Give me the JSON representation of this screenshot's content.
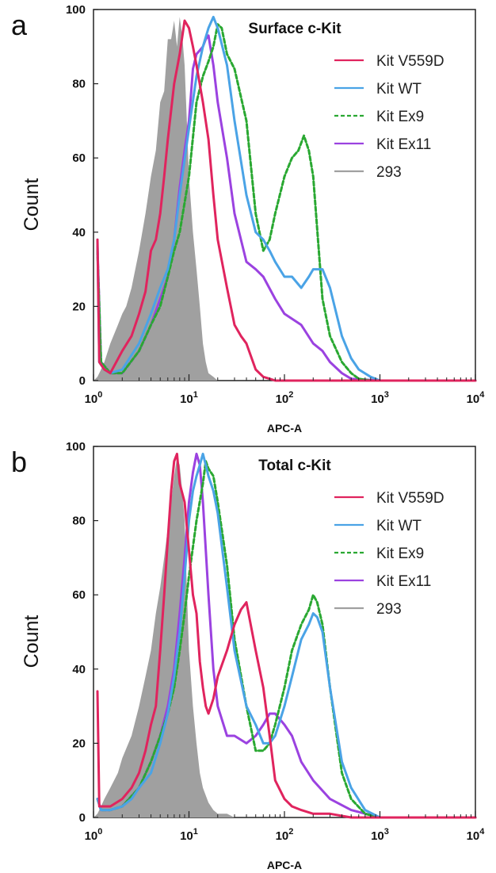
{
  "chart_data": [
    {
      "type": "line",
      "panel_label": "a",
      "title": "Surface c-Kit",
      "xlabel": "APC-A",
      "ylabel": "Count",
      "xscale": "log",
      "xlim": [
        1,
        10000
      ],
      "ylim": [
        0,
        100
      ],
      "yticks": [
        0,
        20,
        40,
        60,
        80,
        100
      ],
      "xticks": [
        {
          "value": 1,
          "base": "10",
          "exp": "0"
        },
        {
          "value": 10,
          "base": "10",
          "exp": "1"
        },
        {
          "value": 100,
          "base": "10",
          "exp": "2"
        },
        {
          "value": 1000,
          "base": "10",
          "exp": "3"
        },
        {
          "value": 10000,
          "base": "10",
          "exp": "4"
        }
      ],
      "legend_position": "top-right",
      "series": [
        {
          "name": "Kit V559D",
          "color": "#e0245e",
          "style": "solid",
          "x": [
            1.1,
            1.15,
            1.3,
            1.5,
            2,
            2.5,
            3,
            3.5,
            4,
            4.5,
            5,
            5.5,
            6,
            7,
            8,
            9,
            10,
            11,
            12,
            14,
            16,
            18,
            20,
            25,
            30,
            35,
            40,
            50,
            60,
            70,
            80,
            100,
            150,
            200,
            500,
            1000,
            10000
          ],
          "y": [
            38,
            5,
            3,
            2,
            8,
            12,
            18,
            24,
            35,
            38,
            45,
            55,
            65,
            80,
            88,
            97,
            95,
            90,
            85,
            75,
            65,
            50,
            38,
            25,
            15,
            12,
            10,
            3,
            1,
            0.5,
            0,
            0,
            0,
            0,
            0,
            0,
            0
          ]
        },
        {
          "name": "Kit WT",
          "color": "#4aa3e6",
          "style": "solid",
          "x": [
            1.1,
            1.15,
            1.3,
            1.5,
            2,
            3,
            4,
            5,
            6,
            7,
            8,
            10,
            12,
            14,
            16,
            18,
            20,
            25,
            30,
            40,
            50,
            60,
            70,
            80,
            100,
            120,
            150,
            180,
            200,
            250,
            300,
            400,
            500,
            600,
            800,
            1000,
            10000
          ],
          "y": [
            38,
            5,
            3,
            2,
            3,
            10,
            18,
            25,
            30,
            38,
            50,
            68,
            82,
            90,
            95,
            98,
            95,
            85,
            70,
            50,
            40,
            38,
            35,
            32,
            28,
            28,
            25,
            28,
            30,
            30,
            25,
            12,
            6,
            3,
            1,
            0,
            0
          ]
        },
        {
          "name": "Kit Ex9",
          "color": "#2aa832",
          "style": "dashed",
          "x": [
            1.1,
            1.2,
            1.5,
            2,
            3,
            4,
            5,
            6,
            7,
            8,
            10,
            12,
            14,
            16,
            18,
            20,
            22,
            25,
            30,
            40,
            50,
            60,
            70,
            80,
            100,
            120,
            140,
            160,
            180,
            200,
            250,
            300,
            400,
            500,
            600,
            800,
            1000,
            10000
          ],
          "y": [
            35,
            5,
            2,
            2,
            8,
            15,
            20,
            28,
            35,
            40,
            55,
            75,
            82,
            86,
            90,
            96,
            95,
            88,
            84,
            70,
            45,
            35,
            38,
            45,
            55,
            60,
            62,
            66,
            62,
            55,
            22,
            12,
            5,
            2,
            0.5,
            0,
            0,
            0
          ]
        },
        {
          "name": "Kit Ex11",
          "color": "#9b42e0",
          "style": "solid",
          "x": [
            1.1,
            1.2,
            1.5,
            2,
            3,
            4,
            5,
            6,
            7,
            8,
            9,
            10,
            11,
            12,
            13,
            14,
            15,
            16,
            18,
            20,
            25,
            30,
            40,
            50,
            60,
            80,
            100,
            150,
            200,
            250,
            300,
            400,
            500,
            1000,
            10000
          ],
          "y": [
            36,
            5,
            2,
            2,
            8,
            15,
            22,
            28,
            38,
            52,
            62,
            70,
            84,
            88,
            89,
            90,
            92,
            93,
            85,
            75,
            60,
            45,
            32,
            30,
            28,
            22,
            18,
            15,
            10,
            8,
            5,
            2,
            0.5,
            0,
            0
          ]
        },
        {
          "name": "293",
          "color": "#a0a0a0",
          "style": "filled",
          "x": [
            1,
            1.1,
            1.2,
            1.3,
            1.5,
            1.8,
            2,
            2.2,
            2.5,
            3,
            3.5,
            4,
            4.5,
            5,
            5.5,
            6,
            6.5,
            7,
            7.5,
            8,
            8.5,
            9,
            9.5,
            10,
            11,
            12,
            13,
            14,
            15,
            16,
            18,
            20,
            1000,
            10000
          ],
          "y": [
            0,
            1,
            3,
            5,
            10,
            15,
            18,
            20,
            25,
            35,
            45,
            55,
            62,
            75,
            78,
            92,
            92,
            97,
            90,
            98,
            93,
            85,
            70,
            55,
            40,
            30,
            20,
            10,
            5,
            2,
            1,
            0,
            0,
            0
          ]
        }
      ]
    },
    {
      "type": "line",
      "panel_label": "b",
      "title": "Total c-Kit",
      "xlabel": "APC-A",
      "ylabel": "Count",
      "xscale": "log",
      "xlim": [
        1,
        10000
      ],
      "ylim": [
        0,
        100
      ],
      "yticks": [
        0,
        20,
        40,
        60,
        80,
        100
      ],
      "xticks": [
        {
          "value": 1,
          "base": "10",
          "exp": "0"
        },
        {
          "value": 10,
          "base": "10",
          "exp": "1"
        },
        {
          "value": 100,
          "base": "10",
          "exp": "2"
        },
        {
          "value": 1000,
          "base": "10",
          "exp": "3"
        },
        {
          "value": 10000,
          "base": "10",
          "exp": "4"
        }
      ],
      "legend_position": "top-right",
      "series": [
        {
          "name": "Kit V559D",
          "color": "#e0245e",
          "style": "solid",
          "x": [
            1.1,
            1.15,
            1.3,
            1.5,
            2,
            2.5,
            3,
            3.5,
            4,
            4.5,
            5,
            5.5,
            6,
            6.5,
            7,
            7.5,
            8,
            9,
            10,
            11,
            12,
            13,
            14,
            15,
            16,
            18,
            20,
            25,
            30,
            35,
            40,
            50,
            60,
            70,
            80,
            100,
            120,
            150,
            200,
            300,
            500,
            1000,
            10000
          ],
          "y": [
            34,
            3,
            3,
            3,
            5,
            8,
            12,
            18,
            25,
            30,
            45,
            60,
            75,
            88,
            96,
            98,
            90,
            85,
            72,
            60,
            55,
            42,
            35,
            30,
            28,
            32,
            38,
            45,
            52,
            56,
            58,
            45,
            35,
            22,
            10,
            5,
            3,
            2,
            1,
            1,
            0,
            0,
            0
          ]
        },
        {
          "name": "Kit WT",
          "color": "#4aa3e6",
          "style": "solid",
          "x": [
            1.1,
            1.2,
            1.5,
            2,
            2.5,
            3,
            4,
            5,
            6,
            7,
            8,
            9,
            10,
            11,
            12,
            13,
            14,
            15,
            16,
            18,
            20,
            25,
            30,
            40,
            50,
            60,
            70,
            80,
            100,
            120,
            150,
            180,
            200,
            220,
            250,
            300,
            400,
            500,
            700,
            1000,
            10000
          ],
          "y": [
            5,
            2,
            2,
            3,
            5,
            8,
            12,
            20,
            28,
            38,
            50,
            65,
            80,
            88,
            92,
            95,
            98,
            95,
            92,
            88,
            82,
            62,
            45,
            30,
            25,
            20,
            20,
            22,
            30,
            38,
            48,
            52,
            55,
            54,
            50,
            35,
            15,
            8,
            2,
            0,
            0
          ]
        },
        {
          "name": "Kit Ex9",
          "color": "#2aa832",
          "style": "dashed",
          "x": [
            1.1,
            1.2,
            1.5,
            2,
            3,
            4,
            5,
            6,
            7,
            8,
            9,
            10,
            12,
            14,
            15,
            16,
            18,
            20,
            25,
            30,
            40,
            50,
            60,
            70,
            80,
            100,
            120,
            150,
            180,
            200,
            220,
            250,
            300,
            400,
            500,
            700,
            1000,
            10000
          ],
          "y": [
            5,
            2,
            2,
            3,
            8,
            15,
            22,
            28,
            35,
            45,
            55,
            65,
            80,
            90,
            96,
            94,
            92,
            85,
            68,
            48,
            30,
            18,
            18,
            20,
            25,
            35,
            45,
            52,
            56,
            60,
            58,
            52,
            35,
            12,
            5,
            1,
            0,
            0
          ]
        },
        {
          "name": "Kit Ex11",
          "color": "#9b42e0",
          "style": "solid",
          "x": [
            1.1,
            1.2,
            1.5,
            2,
            3,
            4,
            5,
            6,
            7,
            8,
            9,
            10,
            11,
            12,
            13,
            14,
            16,
            18,
            20,
            25,
            30,
            40,
            50,
            60,
            70,
            80,
            100,
            120,
            150,
            200,
            300,
            500,
            1000,
            10000
          ],
          "y": [
            5,
            2,
            2,
            3,
            8,
            15,
            22,
            30,
            40,
            55,
            70,
            85,
            93,
            98,
            95,
            85,
            60,
            40,
            30,
            22,
            22,
            20,
            22,
            25,
            28,
            28,
            25,
            22,
            15,
            10,
            5,
            2,
            0,
            0
          ]
        },
        {
          "name": "293",
          "color": "#a0a0a0",
          "style": "filled",
          "x": [
            1,
            1.1,
            1.2,
            1.3,
            1.5,
            1.8,
            2,
            2.5,
            3,
            3.5,
            4,
            4.5,
            5,
            5.5,
            6,
            6.5,
            7,
            7.5,
            8,
            8.5,
            9,
            9.5,
            10,
            11,
            12,
            13,
            14,
            16,
            18,
            20,
            25,
            30,
            1000,
            10000
          ],
          "y": [
            0,
            1,
            3,
            5,
            8,
            12,
            16,
            22,
            30,
            38,
            45,
            55,
            62,
            70,
            78,
            85,
            92,
            97,
            95,
            88,
            80,
            62,
            45,
            30,
            20,
            12,
            8,
            4,
            2,
            1,
            1,
            0,
            0,
            0
          ]
        }
      ]
    }
  ]
}
